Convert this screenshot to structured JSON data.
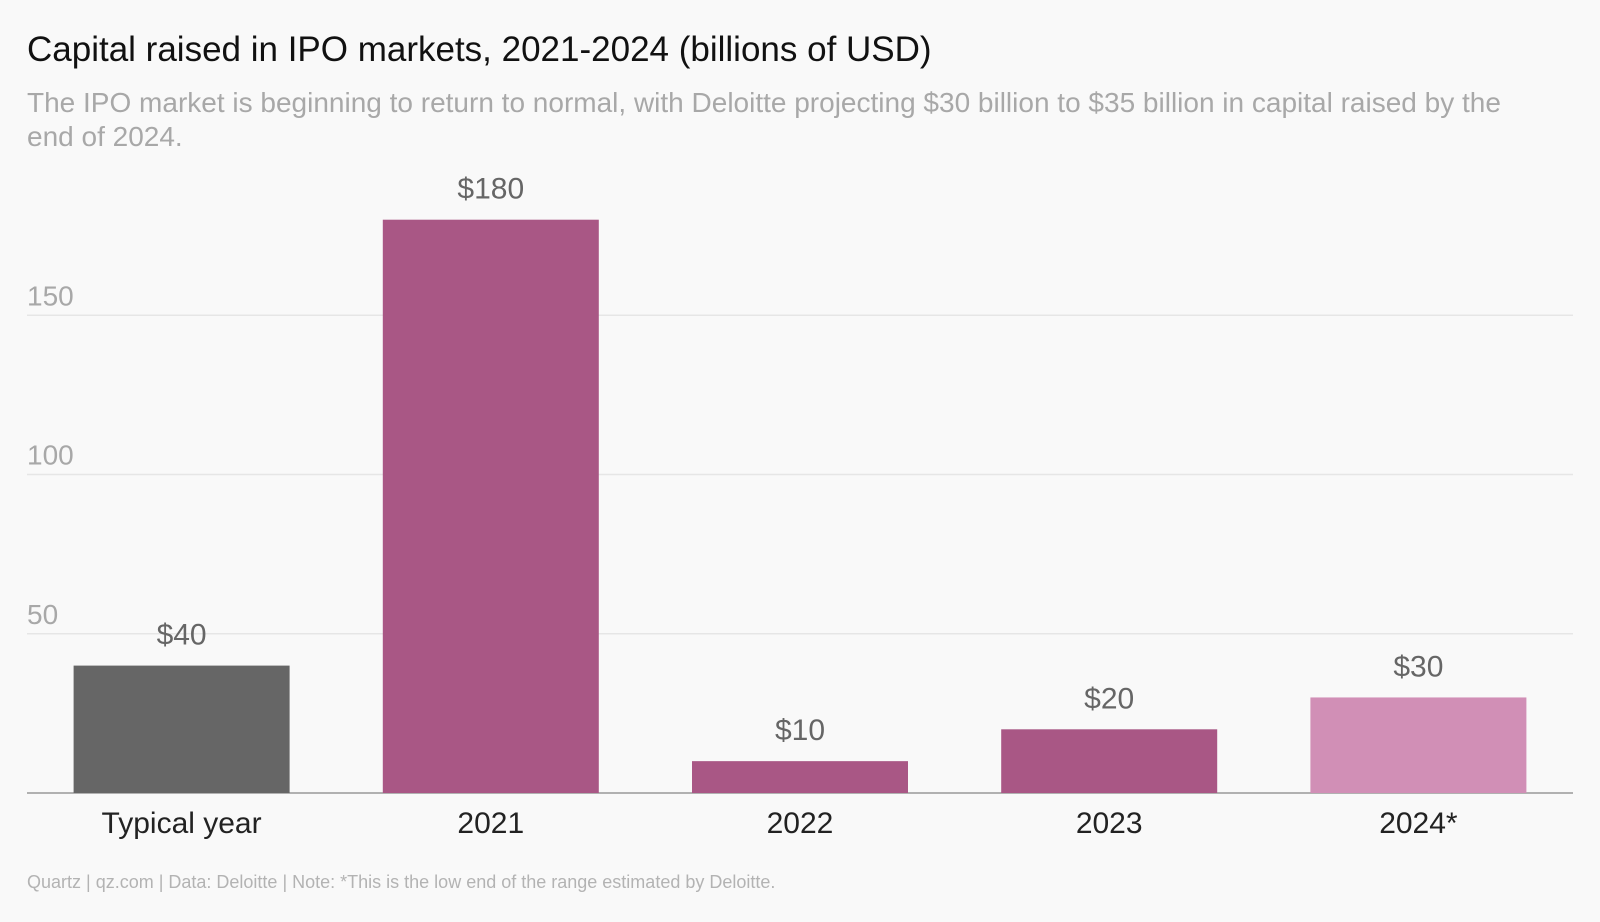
{
  "header": {
    "title": "Capital raised in IPO markets, 2021-2024 (billions of USD)",
    "subtitle": "The IPO market is beginning to return to normal, with Deloitte projecting $30 billion to $35 billion in capital raised by the end of 2024."
  },
  "footer": {
    "text": "Quartz | qz.com | Data: Deloitte | Note: *This is the low end of the range estimated by Deloitte."
  },
  "chart_data": {
    "type": "bar",
    "categories": [
      "Typical year",
      "2021",
      "2022",
      "2023",
      "2024*"
    ],
    "values": [
      40,
      180,
      10,
      20,
      30
    ],
    "value_labels": [
      "$40",
      "$180",
      "$10",
      "$20",
      "$30"
    ],
    "bar_colors": [
      "#666666",
      "#a95785",
      "#a95785",
      "#a95785",
      "#d18fb6"
    ],
    "yticks": [
      50,
      100,
      150
    ],
    "ylim": [
      0,
      200
    ],
    "grid": true,
    "legend": "none",
    "colors": {
      "gridline": "#e6e6e6",
      "baseline": "#999999",
      "tick_label": "#a8a8a8",
      "category_label": "#222222",
      "value_label": "#666666"
    }
  }
}
